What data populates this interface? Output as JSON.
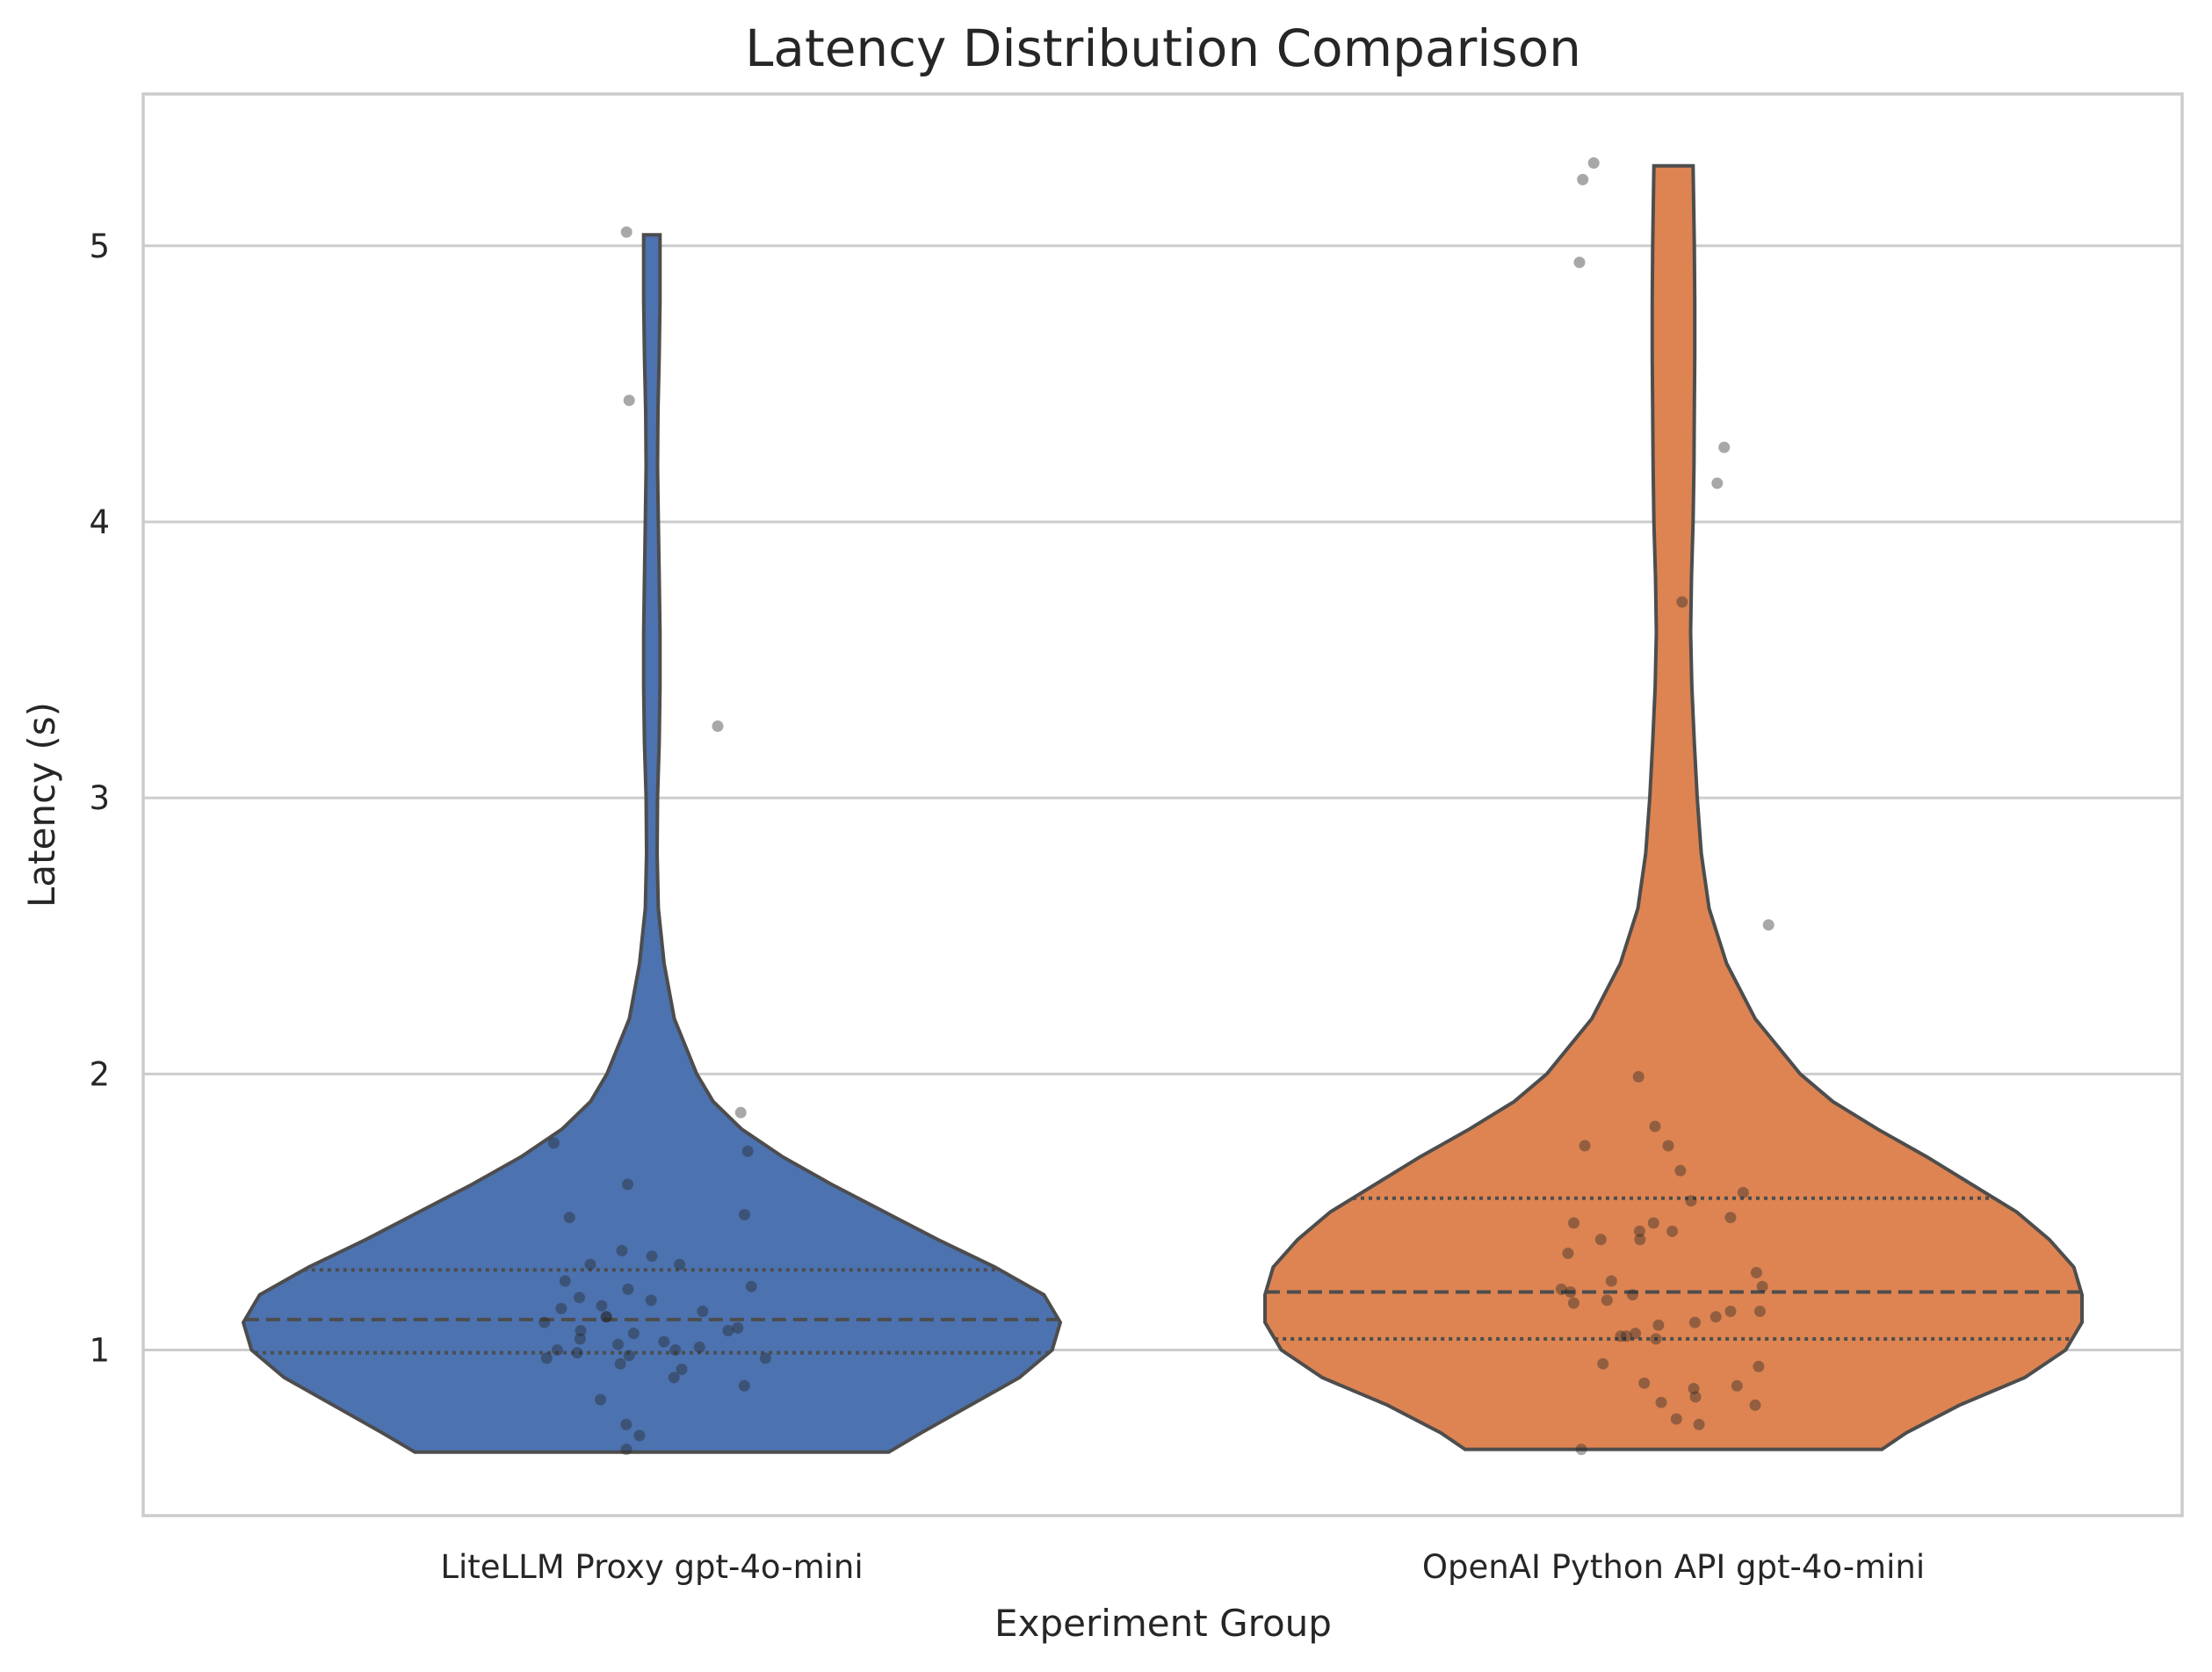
{
  "chart_data": {
    "type": "violin",
    "title": "Latency Distribution Comparison",
    "xlabel": "Experiment Group",
    "ylabel": "Latency (s)",
    "ylim": [
      0.4,
      5.55
    ],
    "yticks": [
      1,
      2,
      3,
      4,
      5
    ],
    "grid": "horizontal",
    "inner": "quartile",
    "categories": [
      "LiteLLM Proxy gpt-4o-mini",
      "OpenAI Python API gpt-4o-mini"
    ],
    "colors": [
      "#4c72b0",
      "#dd8452"
    ],
    "groups": [
      {
        "name": "LiteLLM Proxy gpt-4o-mini",
        "color": "#4c72b0",
        "min": 0.63,
        "max": 5.04,
        "q1": 0.99,
        "median": 1.11,
        "q3": 1.29,
        "density": [
          [
            0.63,
            0.58
          ],
          [
            0.7,
            0.66
          ],
          [
            0.8,
            0.78
          ],
          [
            0.9,
            0.9
          ],
          [
            1.0,
            0.98
          ],
          [
            1.1,
            1.0
          ],
          [
            1.2,
            0.96
          ],
          [
            1.3,
            0.84
          ],
          [
            1.4,
            0.7
          ],
          [
            1.5,
            0.57
          ],
          [
            1.6,
            0.44
          ],
          [
            1.7,
            0.32
          ],
          [
            1.8,
            0.22
          ],
          [
            1.9,
            0.15
          ],
          [
            2.0,
            0.11
          ],
          [
            2.2,
            0.055
          ],
          [
            2.4,
            0.03
          ],
          [
            2.6,
            0.016
          ],
          [
            2.8,
            0.013
          ],
          [
            3.0,
            0.014
          ],
          [
            3.2,
            0.018
          ],
          [
            3.4,
            0.02
          ],
          [
            3.6,
            0.02
          ],
          [
            3.8,
            0.018
          ],
          [
            4.0,
            0.016
          ],
          [
            4.2,
            0.014
          ],
          [
            4.4,
            0.015
          ],
          [
            4.6,
            0.018
          ],
          [
            4.8,
            0.02
          ],
          [
            5.04,
            0.02
          ]
        ],
        "points": [
          1.86,
          1.72,
          1.75,
          1.6,
          1.49,
          1.48,
          1.36,
          1.34,
          1.31,
          1.31,
          1.25,
          1.23,
          1.22,
          1.19,
          1.18,
          1.16,
          1.15,
          1.14,
          1.12,
          1.12,
          1.1,
          1.08,
          1.07,
          1.07,
          1.06,
          1.04,
          1.03,
          1.02,
          1.01,
          1.0,
          1.0,
          0.99,
          0.98,
          0.97,
          0.97,
          0.95,
          0.93,
          0.9,
          0.87,
          0.82,
          0.73,
          0.69,
          0.64,
          3.26,
          4.44,
          5.05
        ]
      },
      {
        "name": "OpenAI Python API gpt-4o-mini",
        "color": "#dd8452",
        "min": 0.64,
        "max": 5.29,
        "q1": 1.04,
        "median": 1.21,
        "q3": 1.55,
        "density": [
          [
            0.64,
            0.51
          ],
          [
            0.7,
            0.57
          ],
          [
            0.8,
            0.7
          ],
          [
            0.9,
            0.86
          ],
          [
            1.0,
            0.96
          ],
          [
            1.1,
            1.0
          ],
          [
            1.2,
            1.0
          ],
          [
            1.3,
            0.98
          ],
          [
            1.4,
            0.92
          ],
          [
            1.5,
            0.84
          ],
          [
            1.6,
            0.73
          ],
          [
            1.7,
            0.62
          ],
          [
            1.8,
            0.5
          ],
          [
            1.9,
            0.39
          ],
          [
            2.0,
            0.31
          ],
          [
            2.2,
            0.2
          ],
          [
            2.4,
            0.13
          ],
          [
            2.6,
            0.087
          ],
          [
            2.8,
            0.068
          ],
          [
            3.0,
            0.058
          ],
          [
            3.2,
            0.051
          ],
          [
            3.4,
            0.045
          ],
          [
            3.6,
            0.042
          ],
          [
            3.8,
            0.044
          ],
          [
            4.0,
            0.048
          ],
          [
            4.2,
            0.05
          ],
          [
            4.4,
            0.051
          ],
          [
            4.6,
            0.052
          ],
          [
            4.8,
            0.052
          ],
          [
            5.0,
            0.051
          ],
          [
            5.29,
            0.048
          ]
        ],
        "points": [
          2.54,
          1.99,
          1.81,
          1.74,
          1.74,
          1.65,
          1.57,
          1.54,
          1.48,
          1.46,
          1.46,
          1.43,
          1.43,
          1.4,
          1.4,
          1.35,
          1.28,
          1.25,
          1.23,
          1.22,
          1.21,
          1.2,
          1.18,
          1.17,
          1.14,
          1.14,
          1.12,
          1.1,
          1.09,
          1.06,
          1.05,
          1.05,
          1.04,
          0.95,
          0.94,
          0.88,
          0.87,
          0.86,
          0.83,
          0.81,
          0.8,
          0.75,
          0.73,
          0.64,
          3.71,
          4.14,
          4.27,
          4.94,
          5.24,
          5.3
        ]
      }
    ]
  }
}
